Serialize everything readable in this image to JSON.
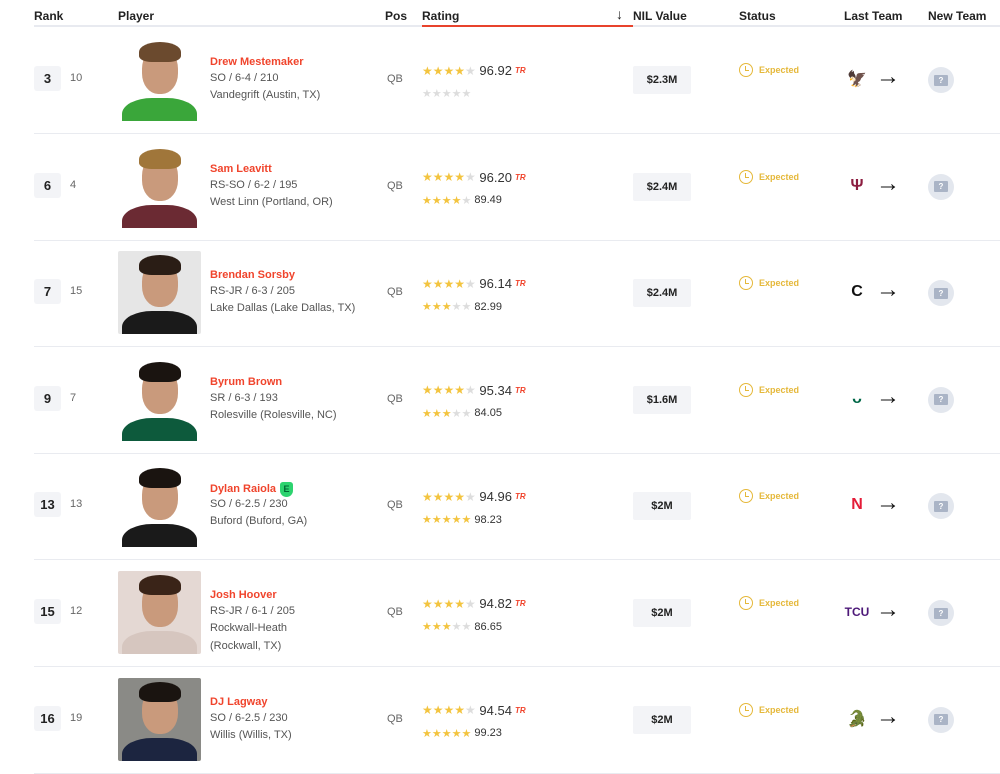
{
  "columns": {
    "rank": "Rank",
    "player": "Player",
    "pos": "Pos",
    "rating": "Rating",
    "sort": "↓",
    "nil": "NIL Value",
    "status": "Status",
    "last_team": "Last Team",
    "new_team": "New Team"
  },
  "colors": {
    "accent": "#f0442c",
    "star": "#f3c43f",
    "status": "#e5b83a"
  },
  "rows": [
    {
      "rank": "3",
      "prev": "10",
      "name": "Drew Mestemaker",
      "l2": "SO / 6-4 / 210",
      "l3": "Vandegrift (Austin, TX)",
      "pos": "QB",
      "stars1": 4,
      "rating1": "96.92",
      "stars2": 0,
      "rating2": "",
      "nil": "$2.3M",
      "status": "Expected",
      "team": "North Texas",
      "logo_text": "🦅",
      "logo_color": "#128541",
      "photo": {
        "bg": "#ffffff",
        "shirt": "#3aa63a",
        "hair": "#6b4a2e"
      }
    },
    {
      "rank": "6",
      "prev": "4",
      "name": "Sam Leavitt",
      "l2": "RS-SO / 6-2 / 195",
      "l3": "West Linn (Portland, OR)",
      "pos": "QB",
      "stars1": 4,
      "rating1": "96.20",
      "stars2": 4,
      "rating2": "89.49",
      "nil": "$2.4M",
      "status": "Expected",
      "team": "Arizona State",
      "logo_text": "Ψ",
      "logo_color": "#8c1d40",
      "photo": {
        "bg": "#ffffff",
        "shirt": "#6b2a33",
        "hair": "#a0763a"
      }
    },
    {
      "rank": "7",
      "prev": "15",
      "name": "Brendan Sorsby",
      "l2": "RS-JR / 6-3 / 205",
      "l3": "Lake Dallas (Lake Dallas, TX)",
      "pos": "QB",
      "stars1": 4,
      "rating1": "96.14",
      "stars2": 3,
      "rating2": "82.99",
      "nil": "$2.4M",
      "status": "Expected",
      "team": "Cincinnati",
      "logo_text": "C",
      "logo_color": "#111111",
      "photo": {
        "bg": "#e6e6e6",
        "shirt": "#1a1a1a",
        "hair": "#2a1d15"
      }
    },
    {
      "rank": "9",
      "prev": "7",
      "name": "Byrum Brown",
      "l2": "SR / 6-3 / 193",
      "l3": "Rolesville (Rolesville, NC)",
      "pos": "QB",
      "stars1": 4,
      "rating1": "95.34",
      "stars2": 3,
      "rating2": "84.05",
      "nil": "$1.6M",
      "status": "Expected",
      "team": "South Florida",
      "logo_text": "ᴗ",
      "logo_color": "#006747",
      "photo": {
        "bg": "#ffffff",
        "shirt": "#0d5a3c",
        "hair": "#1a1410"
      }
    },
    {
      "rank": "13",
      "prev": "13",
      "name": "Dylan Raiola",
      "badge": "E",
      "l2": "SO / 6-2.5 / 230",
      "l3": "Buford (Buford, GA)",
      "pos": "QB",
      "stars1": 4,
      "rating1": "94.96",
      "stars2": 5,
      "rating2": "98.23",
      "nil": "$2M",
      "status": "Expected",
      "team": "Nebraska",
      "logo_text": "N",
      "logo_color": "#e41c38",
      "photo": {
        "bg": "#ffffff",
        "shirt": "#1a1a1a",
        "hair": "#1a1410"
      }
    },
    {
      "rank": "15",
      "prev": "12",
      "name": "Josh Hoover",
      "l2": "RS-JR / 6-1 / 205",
      "l3": "Rockwall-Heath",
      "l4": "(Rockwall, TX)",
      "pos": "QB",
      "stars1": 4,
      "rating1": "94.82",
      "stars2": 3,
      "rating2": "86.65",
      "nil": "$2M",
      "status": "Expected",
      "team": "TCU",
      "logo_text": "TCU",
      "logo_color": "#4d1979",
      "photo": {
        "bg": "#e4d8d3",
        "shirt": "#d6c6bf",
        "hair": "#3a2418"
      }
    },
    {
      "rank": "16",
      "prev": "19",
      "name": "DJ Lagway",
      "l2": "SO / 6-2.5 / 230",
      "l3": "Willis (Willis, TX)",
      "pos": "QB",
      "stars1": 4,
      "rating1": "94.54",
      "stars2": 5,
      "rating2": "99.23",
      "nil": "$2M",
      "status": "Expected",
      "team": "Florida",
      "logo_text": "🐊",
      "logo_color": "#0021a5",
      "photo": {
        "bg": "#8a8a86",
        "shirt": "#1c2540",
        "hair": "#1a1410"
      }
    }
  ]
}
